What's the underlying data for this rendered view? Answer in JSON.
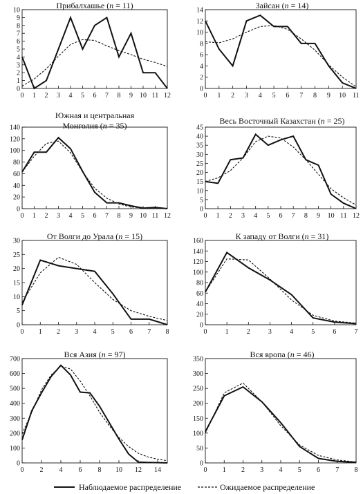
{
  "chart_data": [
    {
      "type": "line",
      "title_parts": [
        "Прибалхашье (",
        "n",
        " = 11)"
      ],
      "x": [
        0,
        1,
        2,
        3,
        4,
        5,
        6,
        7,
        8,
        9,
        10,
        11,
        12
      ],
      "series": [
        {
          "values": [
            4,
            0,
            1,
            5,
            9,
            5,
            8,
            9,
            4,
            7,
            2,
            2,
            0
          ]
        },
        {
          "values": [
            0.3,
            1.2,
            2.5,
            4.1,
            5.6,
            6.2,
            6.1,
            5.4,
            4.8,
            4.3,
            3.7,
            3.3,
            2.8
          ]
        }
      ],
      "xticks": [
        0,
        1,
        2,
        3,
        4,
        5,
        6,
        7,
        8,
        9,
        10,
        11,
        12
      ],
      "yticks": [
        0,
        1,
        2,
        3,
        4,
        5,
        6,
        7,
        8,
        9,
        10
      ],
      "xlim": [
        0,
        12
      ],
      "ylim": [
        0,
        10
      ]
    },
    {
      "type": "line",
      "title_parts": [
        "Зайсан (",
        "n",
        " = 14)"
      ],
      "x": [
        0,
        1,
        2,
        3,
        4,
        5,
        6,
        7,
        8,
        9,
        10,
        11
      ],
      "series": [
        {
          "values": [
            12,
            7,
            4,
            12,
            13,
            11,
            11,
            8,
            8,
            4,
            1,
            0
          ]
        },
        {
          "values": [
            8.3,
            8.1,
            8.8,
            10.0,
            11.0,
            11.2,
            10.5,
            8.8,
            6.8,
            4.2,
            2.0,
            0.3
          ]
        }
      ],
      "xticks": [
        0,
        1,
        2,
        3,
        4,
        5,
        6,
        7,
        8,
        9,
        10,
        11
      ],
      "yticks": [
        0,
        2,
        4,
        6,
        8,
        10,
        12,
        14
      ],
      "xlim": [
        0,
        11
      ],
      "ylim": [
        0,
        14
      ]
    },
    {
      "type": "line",
      "title_lines": [
        "Южная и центральная",
        "Монголия (|n| = 35)"
      ],
      "x": [
        0,
        1,
        2,
        3,
        4,
        5,
        6,
        7,
        8,
        9,
        10,
        11,
        12
      ],
      "series": [
        {
          "values": [
            63,
            97,
            97,
            122,
            103,
            64,
            28,
            10,
            10,
            5,
            1,
            2,
            0
          ]
        },
        {
          "values": [
            63,
            90,
            112,
            116,
            96,
            63,
            35,
            18,
            8,
            3,
            1,
            0.3,
            0
          ]
        }
      ],
      "xticks": [
        0,
        1,
        2,
        3,
        4,
        5,
        6,
        7,
        8,
        9,
        10,
        11,
        12
      ],
      "yticks": [
        0,
        20,
        40,
        60,
        80,
        100,
        120,
        140
      ],
      "xlim": [
        0,
        12
      ],
      "ylim": [
        0,
        140
      ]
    },
    {
      "type": "line",
      "title_parts": [
        "Весь Восточный Казахстан (",
        "n",
        " = 25)"
      ],
      "x": [
        0,
        1,
        2,
        3,
        4,
        5,
        6,
        7,
        8,
        9,
        10,
        11,
        12
      ],
      "series": [
        {
          "values": [
            15,
            14,
            27,
            28,
            41,
            35,
            38,
            40,
            27,
            24,
            8,
            3,
            0
          ]
        },
        {
          "values": [
            15,
            17,
            21,
            28,
            37,
            40,
            39,
            34,
            27,
            19,
            11,
            6,
            2
          ]
        }
      ],
      "xticks": [
        0,
        1,
        2,
        3,
        4,
        5,
        6,
        7,
        8,
        9,
        10,
        11,
        12
      ],
      "yticks": [
        0,
        5,
        10,
        15,
        20,
        25,
        30,
        35,
        40,
        45
      ],
      "xlim": [
        0,
        12
      ],
      "ylim": [
        0,
        45
      ]
    },
    {
      "type": "line",
      "title_parts": [
        "От Волги до Урала (",
        "n",
        " = 15)"
      ],
      "x": [
        0,
        1,
        2,
        3,
        4,
        5,
        6,
        7,
        8
      ],
      "series": [
        {
          "values": [
            7,
            23,
            21,
            20,
            19,
            11,
            2,
            2,
            0
          ]
        },
        {
          "values": [
            8,
            18.5,
            24,
            21.5,
            15,
            9,
            5,
            3,
            1.5
          ]
        }
      ],
      "xticks": [
        0,
        1,
        2,
        3,
        4,
        5,
        6,
        7,
        8
      ],
      "yticks": [
        0,
        5,
        10,
        15,
        20,
        25,
        30
      ],
      "xlim": [
        0,
        8
      ],
      "ylim": [
        0,
        30
      ]
    },
    {
      "type": "line",
      "title_parts": [
        "К западу от Волги (",
        "n",
        " = 31)"
      ],
      "x": [
        0,
        1,
        2,
        3,
        4,
        5,
        6,
        7
      ],
      "series": [
        {
          "values": [
            62,
            137,
            108,
            85,
            57,
            13,
            5,
            2
          ]
        },
        {
          "values": [
            62,
            125,
            123,
            87,
            47,
            18,
            7,
            3
          ]
        }
      ],
      "xticks": [
        0,
        1,
        2,
        3,
        4,
        5,
        6,
        7
      ],
      "yticks": [
        0,
        20,
        40,
        60,
        80,
        100,
        120,
        140,
        160
      ],
      "xlim": [
        0,
        7
      ],
      "ylim": [
        0,
        160
      ]
    },
    {
      "type": "line",
      "title_parts": [
        "Вся Азия (",
        "n",
        " = 97)"
      ],
      "x": [
        0,
        1,
        2,
        3,
        4,
        5,
        6,
        7,
        8,
        9,
        10,
        11,
        12,
        13,
        14,
        15
      ],
      "series": [
        {
          "values": [
            155,
            350,
            470,
            580,
            655,
            590,
            475,
            470,
            380,
            270,
            160,
            60,
            5,
            3,
            2,
            0
          ]
        },
        {
          "values": [
            195,
            340,
            490,
            590,
            650,
            630,
            550,
            450,
            340,
            250,
            170,
            110,
            65,
            40,
            25,
            15
          ]
        }
      ],
      "xticks": [
        0,
        2,
        4,
        6,
        8,
        10,
        12,
        14
      ],
      "yticks": [
        0,
        100,
        200,
        300,
        400,
        500,
        600,
        700
      ],
      "xlim": [
        0,
        15
      ],
      "ylim": [
        0,
        700
      ]
    },
    {
      "type": "line",
      "title_parts": [
        "Вся вропа (",
        "n",
        " = 46)"
      ],
      "x": [
        0,
        1,
        2,
        3,
        4,
        5,
        6,
        7,
        8
      ],
      "series": [
        {
          "values": [
            105,
            225,
            255,
            205,
            135,
            55,
            15,
            5,
            2
          ]
        },
        {
          "values": [
            100,
            235,
            268,
            205,
            125,
            60,
            25,
            10,
            3
          ]
        }
      ],
      "xticks": [
        0,
        1,
        2,
        3,
        4,
        5,
        6,
        7,
        8
      ],
      "yticks": [
        0,
        50,
        100,
        150,
        200,
        250,
        300,
        350
      ],
      "xlim": [
        0,
        8
      ],
      "ylim": [
        0,
        350
      ]
    }
  ],
  "legend": {
    "observed": "Наблюдаемое распределение",
    "expected": "Ожидаемое распределение"
  }
}
